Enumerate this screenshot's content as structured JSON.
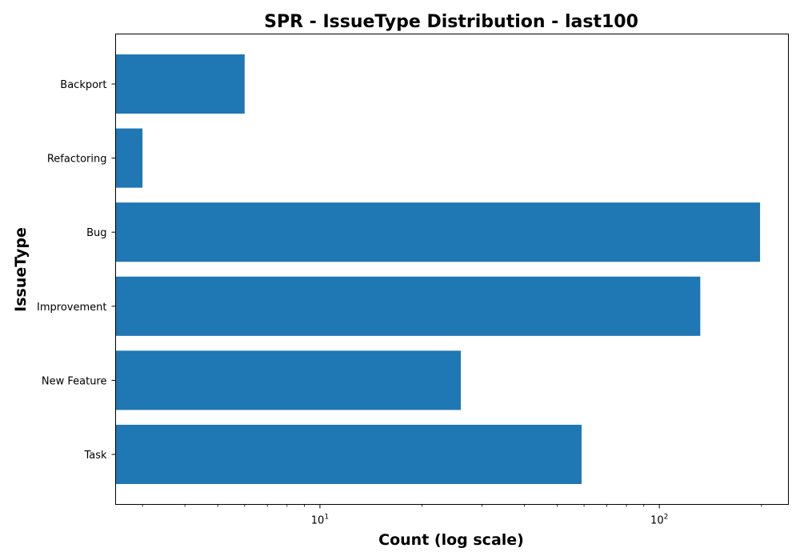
{
  "chart_data": {
    "type": "bar",
    "orientation": "horizontal",
    "title": "SPR - IssueType Distribution - last100",
    "xlabel": "Count (log scale)",
    "ylabel": "IssueType",
    "x_scale": "log",
    "xlim": [
      2.5,
      240
    ],
    "categories": [
      "Task",
      "New Feature",
      "Improvement",
      "Bug",
      "Refactoring",
      "Backport"
    ],
    "values": [
      59,
      26,
      132,
      198,
      3,
      6
    ],
    "bar_color": "#1f77b4",
    "x_ticks": [
      {
        "value": 10,
        "base": "10",
        "exp": "1"
      },
      {
        "value": 100,
        "base": "10",
        "exp": "2"
      }
    ],
    "grid": false
  }
}
